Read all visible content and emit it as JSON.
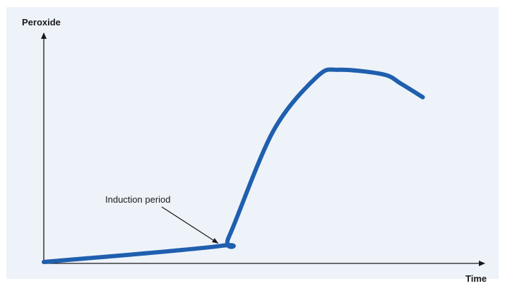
{
  "chart_data": {
    "type": "line",
    "title": "",
    "xlabel": "Time",
    "ylabel": "Peroxide",
    "xlim": [
      0,
      100
    ],
    "ylim": [
      0,
      100
    ],
    "grid": false,
    "legend": "none",
    "x_ticks_shown": false,
    "y_ticks_shown": false,
    "series": [
      {
        "color": "#1f5fae",
        "points": [
          {
            "x": 0,
            "y": 0
          },
          {
            "x": 40,
            "y": 7
          },
          {
            "x": 42,
            "y": 11
          },
          {
            "x": 52,
            "y": 57
          },
          {
            "x": 62,
            "y": 81
          },
          {
            "x": 67,
            "y": 84
          },
          {
            "x": 77,
            "y": 82
          },
          {
            "x": 81,
            "y": 78
          },
          {
            "x": 86,
            "y": 72
          }
        ]
      }
    ],
    "annotations": [
      {
        "text": "Induction period",
        "x": 40,
        "y": 7
      }
    ]
  }
}
